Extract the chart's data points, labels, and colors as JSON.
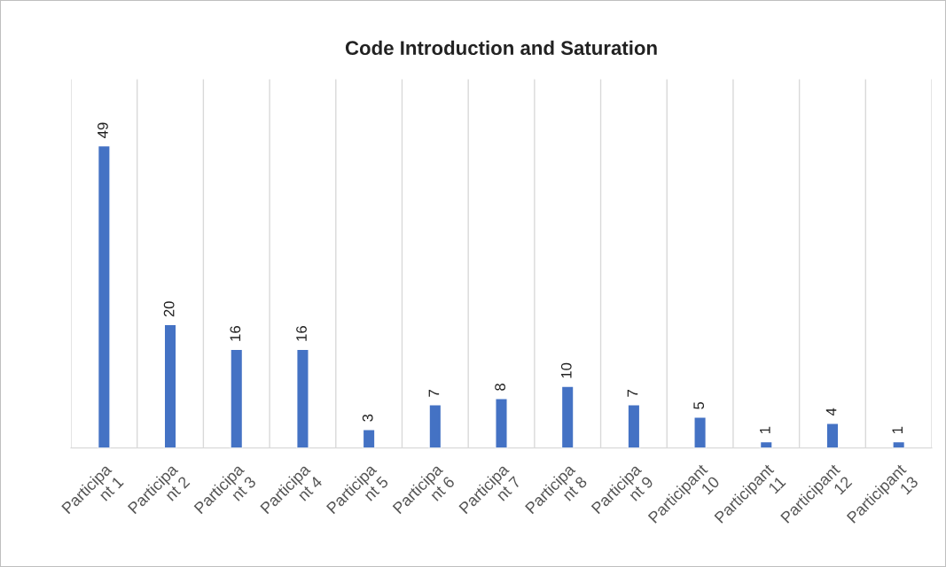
{
  "chart_data": {
    "type": "bar",
    "title": "Code Introduction and Saturation",
    "categories": [
      "Participa\nnt 1",
      "Participa\nnt 2",
      "Participa\nnt 3",
      "Participa\nnt 4",
      "Participa\nnt 5",
      "Participa\nnt 6",
      "Participa\nnt 7",
      "Participa\nnt 8",
      "Participa\nnt 9",
      "Participant\n10",
      "Participant\n11",
      "Participant\n12",
      "Participant\n13"
    ],
    "values": [
      49,
      20,
      16,
      16,
      3,
      7,
      8,
      10,
      7,
      5,
      1,
      4,
      1
    ],
    "color": "#4472c4",
    "data_labels": true,
    "grid": "x",
    "legend": false
  }
}
